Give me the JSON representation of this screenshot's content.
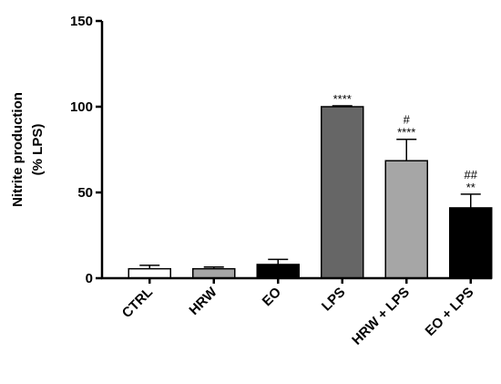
{
  "chart_data": {
    "type": "bar",
    "y_label": [
      "Nitrite production",
      "(% LPS)"
    ],
    "categories": [
      "CTRL",
      "HRW",
      "EO",
      "LPS",
      "HRW + LPS",
      "EO + LPS"
    ],
    "values": [
      5.5,
      5.5,
      8,
      100,
      68.5,
      41
    ],
    "errors": [
      2,
      1,
      3,
      0.5,
      12.5,
      8
    ],
    "colors": [
      "#ffffff",
      "#a6a6a6",
      "#000000",
      "#666666",
      "#a6a6a6",
      "#000000"
    ],
    "significance": [
      null,
      null,
      null,
      [
        "****"
      ],
      [
        "#",
        "****"
      ],
      [
        "##",
        "**"
      ]
    ],
    "ylim": [
      0,
      150
    ],
    "yticks": [
      0,
      50,
      100,
      150
    ]
  }
}
